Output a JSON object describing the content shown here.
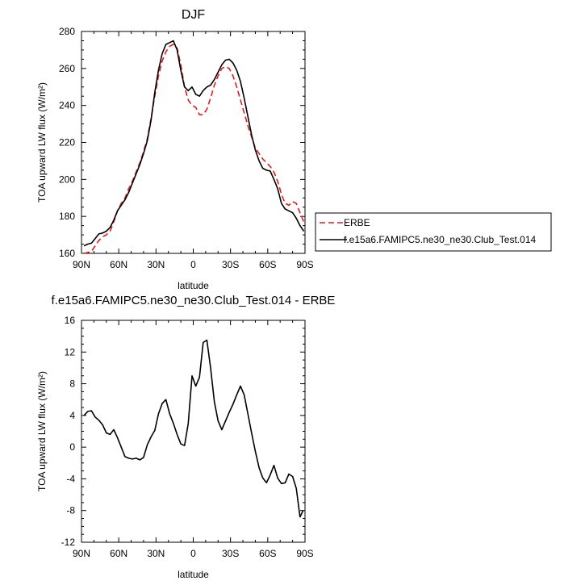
{
  "chart_data": [
    {
      "type": "line",
      "title": "DJF",
      "xlabel": "latitude",
      "ylabel": "TOA upward LW flux (W/m²)",
      "xlim": [
        90,
        -90
      ],
      "ylim": [
        160,
        280
      ],
      "x_ticks": [
        90,
        60,
        30,
        0,
        -30,
        -60,
        -90
      ],
      "x_tick_labels": [
        "90N",
        "60N",
        "30N",
        "0",
        "30S",
        "60S",
        "90S"
      ],
      "y_ticks": [
        160,
        180,
        200,
        220,
        240,
        260,
        280
      ],
      "y_tick_labels": [
        "160",
        "180",
        "200",
        "220",
        "240",
        "260",
        "280"
      ],
      "legend_position": "right",
      "series": [
        {
          "name": "ERBE",
          "style": "dashed",
          "color": "#e41a1c",
          "x": [
            88,
            85,
            82,
            79,
            76,
            73,
            70,
            67,
            64,
            61,
            58,
            55,
            52,
            49,
            46,
            43,
            40,
            37,
            34,
            31,
            28,
            25,
            22,
            19,
            16,
            13,
            10,
            7,
            4,
            1,
            -2,
            -5,
            -8,
            -11,
            -14,
            -17,
            -20,
            -23,
            -26,
            -29,
            -32,
            -35,
            -38,
            -41,
            -44,
            -47,
            -50,
            -53,
            -56,
            -59,
            -62,
            -65,
            -68,
            -71,
            -74,
            -77,
            -80,
            -83,
            -86,
            -89
          ],
          "y": [
            160,
            160.5,
            161,
            164,
            167,
            169,
            170,
            172,
            177,
            183,
            187,
            190,
            195,
            199,
            204,
            209,
            215,
            222,
            233,
            245,
            256,
            264,
            269,
            272,
            273,
            271,
            262,
            250,
            243,
            240,
            239,
            235,
            235,
            238,
            244,
            251,
            256,
            260,
            261,
            260,
            256,
            250,
            243,
            236,
            229,
            223,
            217,
            214,
            211,
            209,
            207,
            204,
            199,
            192,
            187,
            186,
            188,
            187,
            182,
            177
          ]
        },
        {
          "name": "f.e15a6.FAMIPC5.ne30_ne30.Club_Test.014",
          "style": "solid",
          "color": "#000000",
          "x": [
            88,
            85,
            82,
            79,
            76,
            73,
            70,
            67,
            64,
            61,
            58,
            55,
            52,
            49,
            46,
            43,
            40,
            37,
            34,
            31,
            28,
            25,
            22,
            19,
            16,
            13,
            10,
            7,
            4,
            1,
            -2,
            -5,
            -8,
            -11,
            -14,
            -17,
            -20,
            -23,
            -26,
            -29,
            -32,
            -35,
            -38,
            -41,
            -44,
            -47,
            -50,
            -53,
            -56,
            -59,
            -62,
            -65,
            -68,
            -71,
            -74,
            -77,
            -80,
            -83,
            -86,
            -89
          ],
          "y": [
            164,
            165,
            165.5,
            168,
            170.5,
            171,
            172,
            174,
            178,
            183,
            186,
            189,
            193,
            198,
            203,
            208,
            214,
            221,
            232,
            247,
            259,
            268,
            273,
            274,
            275,
            270,
            259,
            250,
            248,
            250,
            246,
            245,
            248,
            250,
            251,
            254,
            258,
            262,
            264.5,
            265,
            263,
            259,
            253,
            244,
            234,
            224,
            216,
            210,
            206,
            205,
            204.5,
            200,
            195,
            187,
            184,
            183,
            182,
            179,
            175,
            172
          ]
        }
      ]
    },
    {
      "type": "line",
      "title": "f.e15a6.FAMIPC5.ne30_ne30.Club_Test.014 - ERBE",
      "xlabel": "latitude",
      "ylabel": "TOA upward LW flux (W/m²)",
      "xlim": [
        90,
        -90
      ],
      "ylim": [
        -12,
        16
      ],
      "x_ticks": [
        90,
        60,
        30,
        0,
        -30,
        -60,
        -90
      ],
      "x_tick_labels": [
        "90N",
        "60N",
        "30N",
        "0",
        "30S",
        "60S",
        "90S"
      ],
      "y_ticks": [
        -12,
        -8,
        -4,
        0,
        4,
        8,
        12,
        16
      ],
      "y_tick_labels": [
        "-12",
        "-8",
        "-4",
        "0",
        "4",
        "8",
        "12",
        "16"
      ],
      "series": [
        {
          "style": "solid",
          "color": "#000000",
          "x": [
            88,
            85,
            82,
            79,
            76,
            73,
            70,
            67,
            64,
            61,
            58,
            55,
            52,
            49,
            46,
            43,
            40,
            37,
            34,
            31,
            28,
            25,
            22,
            19,
            16,
            13,
            10,
            7,
            4,
            1,
            -2,
            -5,
            -8,
            -11,
            -14,
            -17,
            -20,
            -23,
            -26,
            -29,
            -32,
            -35,
            -38,
            -41,
            -44,
            -47,
            -50,
            -53,
            -56,
            -59,
            -62,
            -65,
            -68,
            -71,
            -74,
            -77,
            -80,
            -83,
            -86,
            -88.5
          ],
          "y": [
            4,
            4.5,
            4.6,
            3.8,
            3.4,
            2.8,
            1.8,
            1.6,
            2.2,
            1.2,
            0,
            -1.2,
            -1.4,
            -1.5,
            -1.4,
            -1.6,
            -1.3,
            0.3,
            1.3,
            2.1,
            4.2,
            5.5,
            6,
            4.2,
            3,
            1.6,
            0.4,
            0.2,
            3,
            9,
            7.7,
            8.8,
            13.2,
            13.5,
            10,
            5.7,
            3.3,
            2.2,
            3.3,
            4.4,
            5.4,
            6.6,
            7.7,
            6.6,
            4.2,
            1.8,
            -0.5,
            -2.6,
            -3.9,
            -4.5,
            -3.5,
            -2.3,
            -3.9,
            -4.6,
            -4.5,
            -3.4,
            -3.7,
            -5.2,
            -8.8,
            -8
          ]
        }
      ]
    }
  ]
}
